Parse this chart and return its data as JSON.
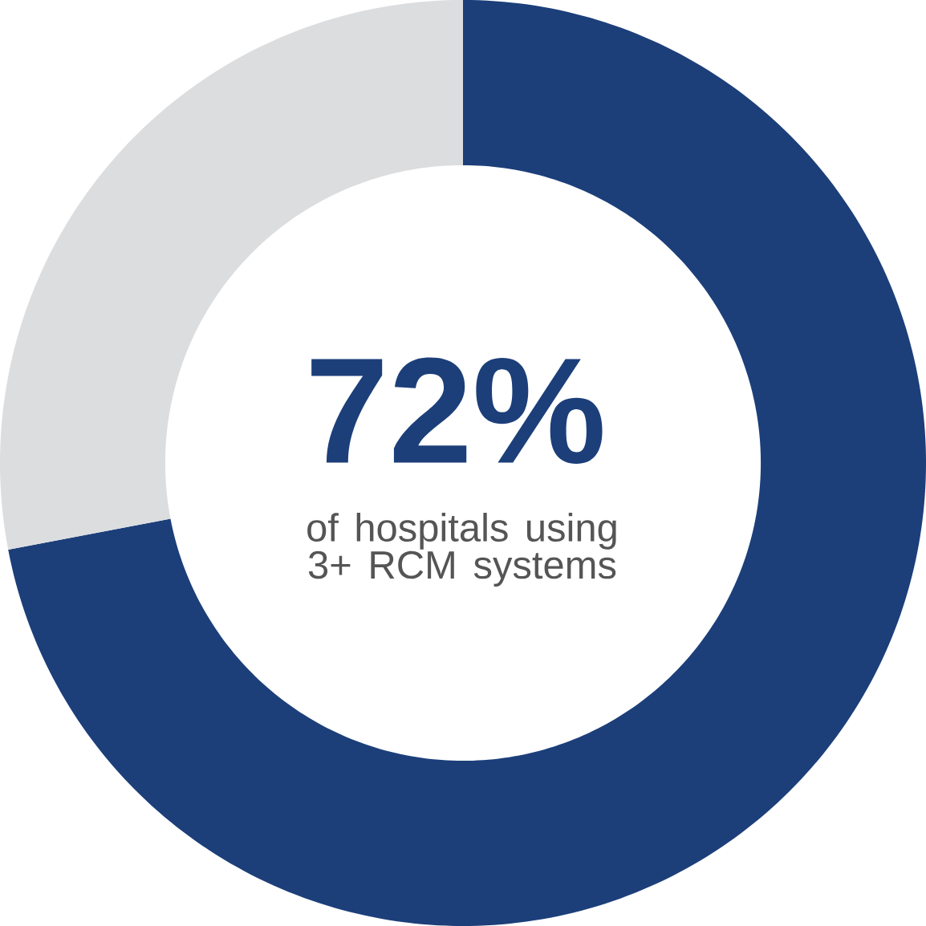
{
  "chart_data": {
    "type": "donut",
    "categories": [
      null,
      null
    ],
    "values": [
      72,
      28
    ],
    "colors": [
      "#1c3f7a",
      "#dcdddf"
    ],
    "annotations": [
      "72%",
      "of hospitals using 3+ RCM systems"
    ]
  }
}
